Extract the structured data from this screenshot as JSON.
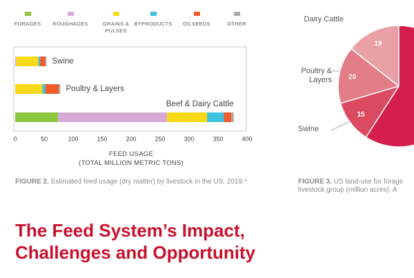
{
  "chart_data": [
    {
      "type": "bar",
      "orientation": "horizontal",
      "stacked": true,
      "categories": [
        "Swine",
        "Poultry & Layers",
        "Beef & Dairy Cattle"
      ],
      "series": [
        {
          "name": "FORAGES",
          "color": "#8dc63f",
          "values": [
            0,
            0,
            74
          ]
        },
        {
          "name": "ROUGHAGES",
          "color": "#d7a9d6",
          "values": [
            2,
            0,
            188
          ]
        },
        {
          "name": "GRAINS & PULSES",
          "color": "#f7d917",
          "values": [
            38,
            47,
            69
          ]
        },
        {
          "name": "BYPRODUCTS",
          "color": "#3fc1e0",
          "values": [
            3,
            5,
            29
          ]
        },
        {
          "name": "OILSEEDS",
          "color": "#f15a29",
          "values": [
            9,
            23,
            13
          ]
        },
        {
          "name": "OTHER",
          "color": "#a7a9ac",
          "values": [
            2,
            3,
            4
          ]
        }
      ],
      "xlim": [
        0,
        400
      ],
      "xticks": [
        0,
        50,
        100,
        150,
        200,
        250,
        300,
        350,
        400
      ],
      "xlabel": [
        "FEED USAGE",
        "(TOTAL MILLION METRIC TONS)"
      ]
    },
    {
      "type": "pie",
      "categories": [
        "Dairy Cattle",
        "Poultry & Layers",
        "Swine",
        null
      ],
      "values": [
        19,
        20,
        15,
        78
      ],
      "colors": [
        "#e9a1a6",
        "#e27c86",
        "#da4a60",
        "#d41f4c"
      ]
    }
  ],
  "captions": [
    {
      "label": "FIGURE 2.",
      "text": "Estimated feed usage (dry matter) by livestock in the US, 2019.⁹"
    },
    {
      "label": "FIGURE 3.",
      "lines": [
        "US land-use for forage",
        "livestock group (million acres). A"
      ]
    }
  ],
  "headline": "The Feed System’s Impact, Challenges and Opportunity"
}
